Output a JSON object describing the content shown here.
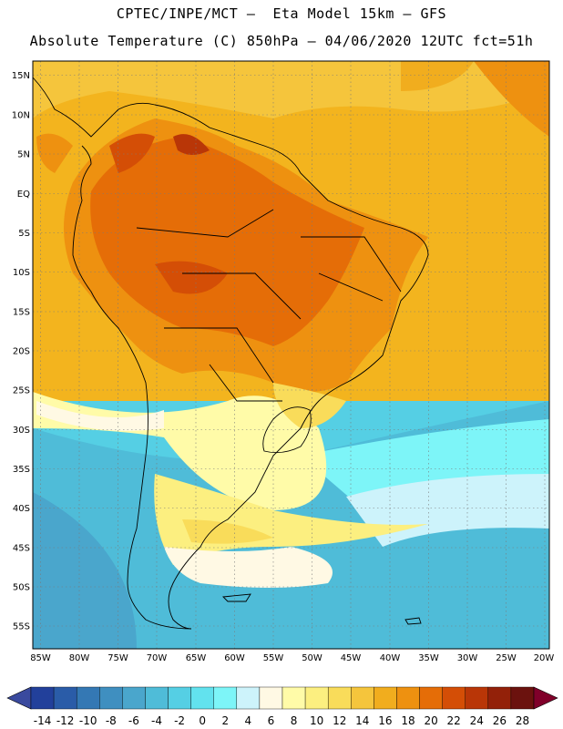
{
  "header": {
    "line1": "CPTEC/INPE/MCT –  Eta Model 15km – GFS",
    "line2": "Absolute Temperature (C) 850hPa – 04/06/2020 12UTC fct=51h"
  },
  "map": {
    "lat_labels": [
      "15N",
      "10N",
      "5N",
      "EQ",
      "5S",
      "10S",
      "15S",
      "20S",
      "25S",
      "30S",
      "35S",
      "40S",
      "45S",
      "50S",
      "55S"
    ],
    "lon_labels": [
      "85W",
      "80W",
      "75W",
      "70W",
      "65W",
      "60W",
      "55W",
      "50W",
      "45W",
      "40W",
      "35W",
      "30W",
      "25W",
      "20W"
    ]
  },
  "colorbar": {
    "ticks": [
      "-14",
      "-12",
      "-10",
      "-8",
      "-6",
      "-4",
      "-2",
      "0",
      "2",
      "4",
      "6",
      "8",
      "10",
      "12",
      "14",
      "16",
      "18",
      "20",
      "22",
      "24",
      "26",
      "28"
    ],
    "colors": [
      "#22409b",
      "#2a5ca8",
      "#3478b4",
      "#3f8fc0",
      "#4aa6cc",
      "#4fbcd8",
      "#55cfe4",
      "#62e2ee",
      "#7df5f8",
      "#cdf3fb",
      "#fff9e4",
      "#fffba8",
      "#fcef80",
      "#f9dc5a",
      "#f5c53c",
      "#f1ad1e",
      "#ee9110",
      "#e56d07",
      "#d44e06",
      "#b93607",
      "#932109",
      "#6b120e"
    ],
    "under_color": "#3a4a9e",
    "over_color": "#80002a"
  }
}
